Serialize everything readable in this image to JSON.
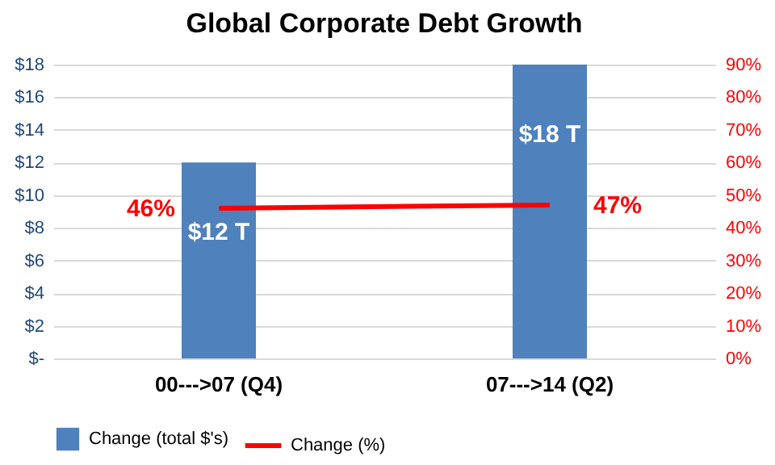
{
  "chart_data": {
    "type": "bar",
    "title": "Global Corporate Debt Growth",
    "categories": [
      "00--->07 (Q4)",
      "07--->14 (Q2)"
    ],
    "series": [
      {
        "name": "Change (total $'s)",
        "color": "#4f81bd",
        "values": [
          12,
          18
        ],
        "value_labels": [
          "$12 T",
          "$18 T"
        ]
      },
      {
        "name": "Change (%)",
        "type": "line",
        "axis": "y2",
        "color": "#ff0000",
        "values": [
          46,
          47
        ],
        "value_labels": [
          "46%",
          "47%"
        ]
      }
    ],
    "ylim": [
      0,
      18
    ],
    "yticks": [
      {
        "value": 0,
        "label": "$-"
      },
      {
        "value": 2,
        "label": "$2"
      },
      {
        "value": 4,
        "label": "$4"
      },
      {
        "value": 6,
        "label": "$6"
      },
      {
        "value": 8,
        "label": "$8"
      },
      {
        "value": 10,
        "label": "$10"
      },
      {
        "value": 12,
        "label": "$12"
      },
      {
        "value": 14,
        "label": "$14"
      },
      {
        "value": 16,
        "label": "$16"
      },
      {
        "value": 18,
        "label": "$18"
      }
    ],
    "y2lim": [
      0,
      90
    ],
    "y2ticks": [
      {
        "value": 0,
        "label": "0%"
      },
      {
        "value": 10,
        "label": "10%"
      },
      {
        "value": 20,
        "label": "20%"
      },
      {
        "value": 30,
        "label": "30%"
      },
      {
        "value": 40,
        "label": "40%"
      },
      {
        "value": 50,
        "label": "50%"
      },
      {
        "value": 60,
        "label": "60%"
      },
      {
        "value": 70,
        "label": "70%"
      },
      {
        "value": 80,
        "label": "80%"
      },
      {
        "value": 90,
        "label": "90%"
      }
    ],
    "grid": "y",
    "legend": "bottom"
  }
}
